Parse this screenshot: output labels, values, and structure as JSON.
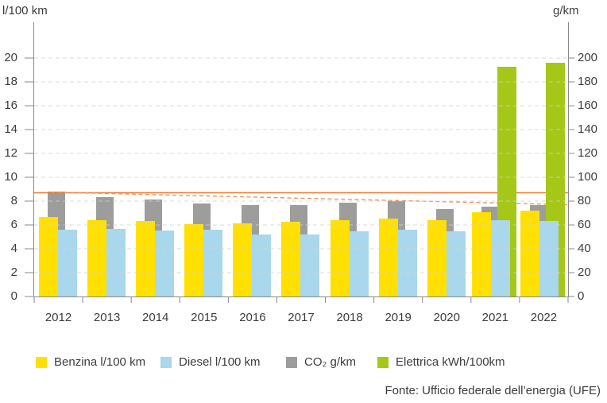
{
  "chart_data": {
    "type": "bar",
    "title": "",
    "categories": [
      "2012",
      "2013",
      "2014",
      "2015",
      "2016",
      "2017",
      "2018",
      "2019",
      "2020",
      "2021",
      "2022"
    ],
    "series": [
      {
        "key": "benzina",
        "name": "Benzina l/100 km",
        "axis": "left",
        "color": "#FFE000",
        "values": [
          6.7,
          6.4,
          6.35,
          6.1,
          6.15,
          6.25,
          6.4,
          6.55,
          6.4,
          7.1,
          7.2
        ]
      },
      {
        "key": "diesel",
        "name": "Diesel l/100 km",
        "axis": "left",
        "color": "#A9D7EC",
        "values": [
          5.6,
          5.7,
          5.55,
          5.6,
          5.2,
          5.2,
          5.45,
          5.6,
          5.5,
          6.4,
          6.35
        ]
      },
      {
        "key": "co2",
        "name": "CO₂ g/km",
        "axis": "right",
        "color": "#9D9D9C",
        "values": [
          88,
          83.5,
          81.5,
          78,
          76.5,
          76.5,
          79,
          80,
          73.5,
          75.5,
          76.5
        ]
      },
      {
        "key": "elettrica",
        "name": "Elettrica kWh/100km",
        "axis": "right",
        "color": "#A5C717",
        "values": [
          null,
          null,
          null,
          null,
          null,
          null,
          null,
          null,
          null,
          193,
          196
        ]
      }
    ],
    "left_axis": {
      "label": "l/100 km",
      "min": 0,
      "max": 20,
      "step": 2
    },
    "right_axis": {
      "label": "g/km",
      "min": 0,
      "max": 200,
      "step": 20
    },
    "annotations": [
      {
        "type": "line",
        "style": "solid",
        "axis": "right",
        "value": 87,
        "color": "#EE7B35"
      },
      {
        "type": "line",
        "style": "dashed",
        "axis": "right",
        "from_value": 87.5,
        "to_value": 77,
        "color": "#F0935A"
      }
    ],
    "grid": "horizontal-dashed",
    "legend_position": "bottom"
  },
  "source": "Fonte: Ufficio federale dell’energia (UFE)"
}
